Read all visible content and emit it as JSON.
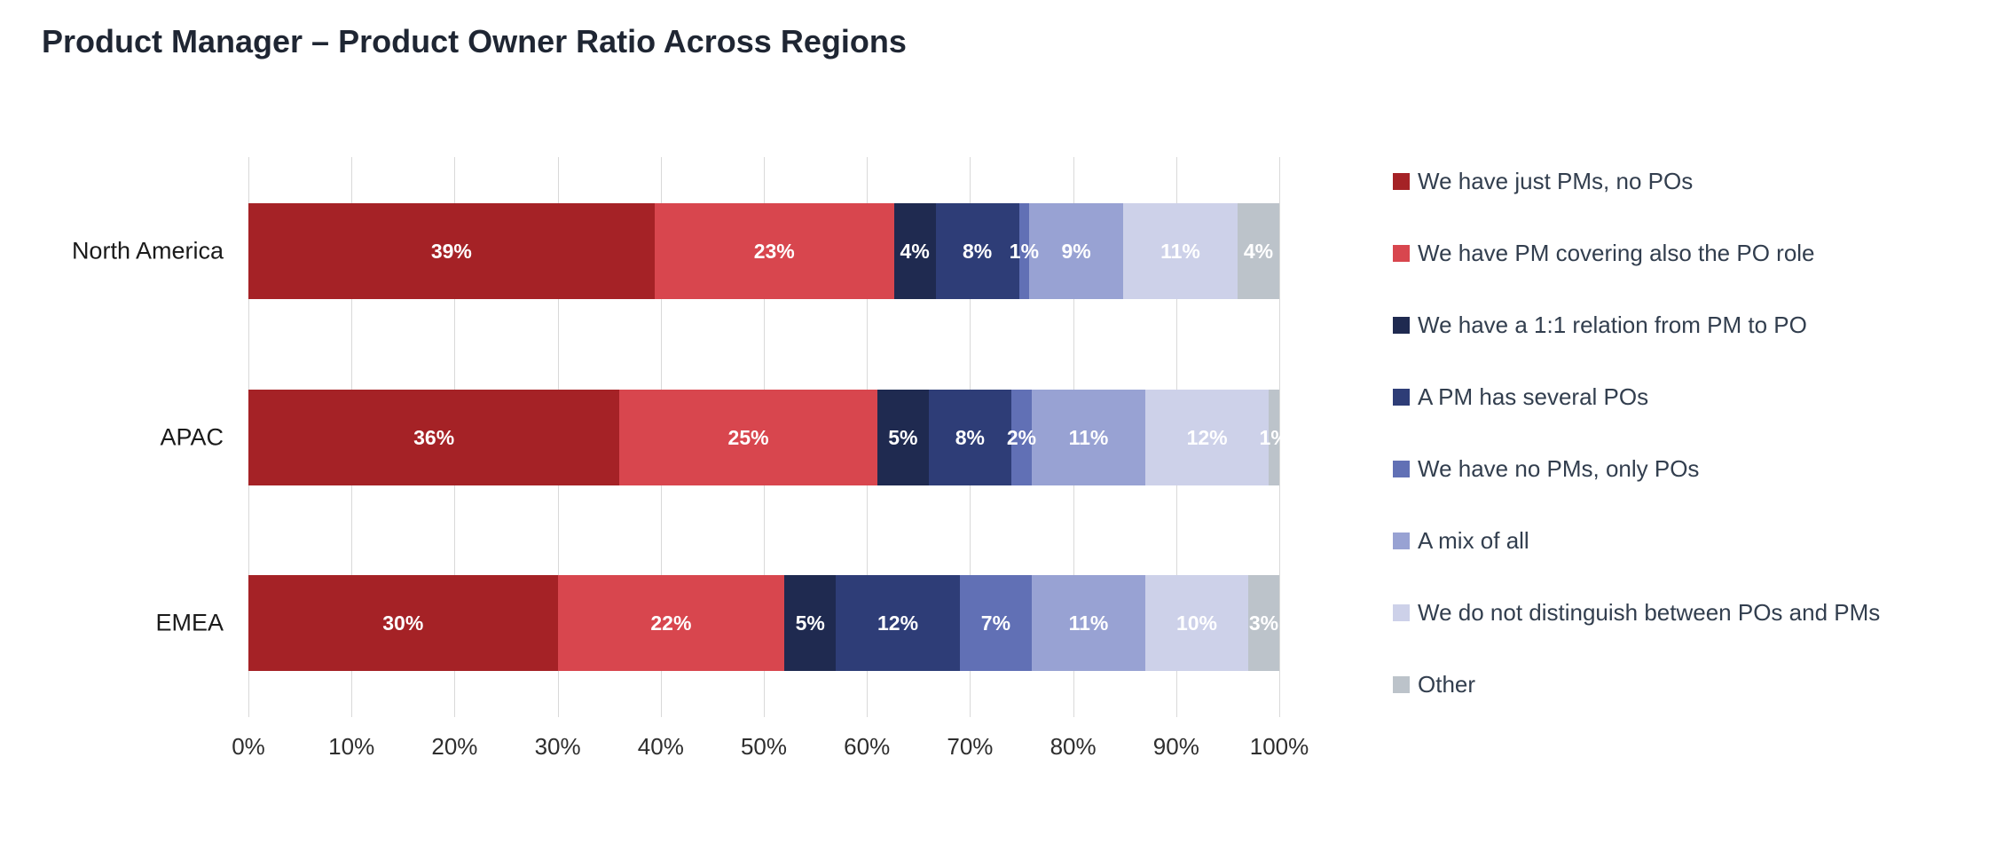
{
  "title": "Product Manager – Product Owner Ratio Across Regions",
  "chart_data": {
    "type": "bar",
    "orientation": "horizontal",
    "stacked": true,
    "title": "Product Manager – Product Owner Ratio Across Regions",
    "categories": [
      "North America",
      "APAC",
      "EMEA"
    ],
    "series": [
      {
        "name": "We have just PMs, no POs",
        "color": "#A52226",
        "values": [
          39,
          36,
          30
        ]
      },
      {
        "name": "We have PM covering also the PO role",
        "color": "#D8464E",
        "values": [
          23,
          25,
          22
        ]
      },
      {
        "name": "We have a 1:1 relation from PM to PO",
        "color": "#1F2A50",
        "values": [
          4,
          5,
          5
        ]
      },
      {
        "name": "A PM has several POs",
        "color": "#2E3D77",
        "values": [
          8,
          8,
          12
        ]
      },
      {
        "name": "We have no PMs, only POs",
        "color": "#6170B5",
        "values": [
          1,
          2,
          7
        ]
      },
      {
        "name": "A mix of all",
        "color": "#98A2D3",
        "values": [
          9,
          11,
          11
        ]
      },
      {
        "name": "We do not distinguish between POs and PMs",
        "color": "#CDD1E9",
        "values": [
          11,
          12,
          10
        ]
      },
      {
        "name": "Other",
        "color": "#BCC3CA",
        "values": [
          4,
          1,
          3
        ]
      }
    ],
    "xlabel": "",
    "ylabel": "",
    "xlim": [
      0,
      100
    ],
    "x_ticks": [
      "0%",
      "10%",
      "20%",
      "30%",
      "40%",
      "50%",
      "60%",
      "70%",
      "80%",
      "90%",
      "100%"
    ],
    "grid": true,
    "legend_position": "right",
    "value_label_suffix": "%"
  }
}
